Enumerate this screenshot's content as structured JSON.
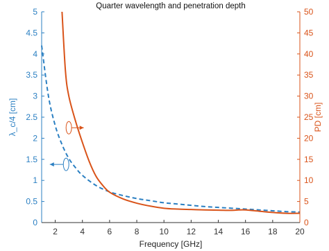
{
  "chart_data": {
    "type": "line",
    "title": "Quarter wavelength and penetration depth",
    "xlabel": "Frequency [GHz]",
    "ylabel_left": "λ_c/4 [cm]",
    "ylabel_right": "PD [cm]",
    "xlim": [
      1,
      20
    ],
    "ylim_left": [
      0,
      5
    ],
    "ylim_right": [
      0,
      50
    ],
    "xticks": [
      "2",
      "4",
      "6",
      "8",
      "10",
      "12",
      "14",
      "16",
      "18",
      "20"
    ],
    "yticks_left": [
      "0",
      "0.5",
      "1",
      "1.5",
      "2",
      "2.5",
      "3",
      "3.5",
      "4",
      "4.5",
      "5"
    ],
    "yticks_right": [
      "0",
      "5",
      "10",
      "15",
      "20",
      "25",
      "30",
      "35",
      "40",
      "45",
      "50"
    ],
    "grid": false,
    "colors": {
      "left_axis": "#2a7fc2",
      "right_axis": "#d95319",
      "quarter_wave": "#2a7fc2",
      "penetration_depth": "#d95319",
      "bottom_axis": "#333333"
    },
    "series": [
      {
        "axis": "left",
        "style": "dashed",
        "x": [
          1,
          1.5,
          2,
          2.5,
          3,
          3.5,
          4,
          5,
          6,
          7,
          8,
          9,
          10,
          11,
          12,
          13,
          14,
          15,
          16,
          17,
          18,
          19,
          20
        ],
        "y": [
          4.2,
          3.0,
          2.3,
          1.85,
          1.52,
          1.3,
          1.12,
          0.88,
          0.73,
          0.64,
          0.57,
          0.52,
          0.47,
          0.44,
          0.41,
          0.38,
          0.36,
          0.34,
          0.32,
          0.3,
          0.28,
          0.26,
          0.25
        ]
      },
      {
        "axis": "right",
        "style": "solid",
        "x": [
          2.5,
          2.75,
          3,
          3.5,
          4,
          4.5,
          5,
          5.5,
          6,
          7,
          8,
          9,
          10,
          11,
          12,
          13,
          14,
          15,
          15.5,
          16,
          17,
          18,
          19,
          20
        ],
        "y": [
          50,
          36,
          30,
          24,
          19,
          14.5,
          11,
          8.8,
          7.2,
          5.6,
          4.6,
          3.9,
          3.4,
          3.2,
          3.1,
          3.0,
          2.95,
          2.9,
          3.0,
          3.0,
          2.7,
          2.4,
          2.2,
          2.2
        ]
      }
    ],
    "annotations": [
      {
        "type": "ellipse-arrow",
        "target_axis": "right",
        "x": 3.0,
        "y": 22.5,
        "arrow_to_x": 4.1
      },
      {
        "type": "ellipse-arrow",
        "target_axis": "left",
        "x": 2.8,
        "y": 1.38,
        "arrow_to_x": 1.6
      }
    ]
  }
}
